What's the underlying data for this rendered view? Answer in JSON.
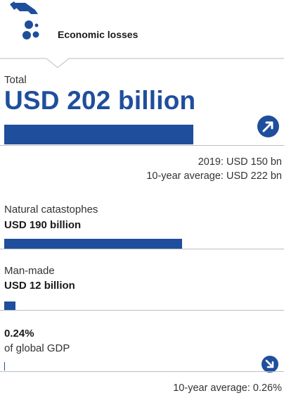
{
  "header": {
    "title": "Economic losses",
    "icon": "hand-with-dots-icon"
  },
  "total": {
    "label": "Total",
    "value": "USD 202 billion",
    "trend_icon": "arrow-up-right-icon",
    "compare_prev": "2019: USD 150 bn",
    "compare_avg": "10-year average: USD 222 bn"
  },
  "natural": {
    "label": "Natural catastophes",
    "value": "USD 190 billion"
  },
  "manmade": {
    "label": "Man-made",
    "value": "USD 12 billion"
  },
  "gdp": {
    "value": "0.24%",
    "label": "of global GDP",
    "trend_icon": "arrow-down-right-icon",
    "compare_avg": "10-year average: 0.26%"
  },
  "colors": {
    "primary": "#1f4e9c",
    "divider": "#b9bec6"
  },
  "chart_data": {
    "type": "bar",
    "orientation": "horizontal",
    "unit": "USD billion",
    "categories": [
      "Total",
      "Natural catastophes",
      "Man-made"
    ],
    "values": [
      202,
      190,
      12
    ],
    "gdp_share_percent": 0.24,
    "comparisons": {
      "total_2019": 150,
      "total_10yr_avg": 222,
      "gdp_10yr_avg_percent": 0.26
    }
  }
}
